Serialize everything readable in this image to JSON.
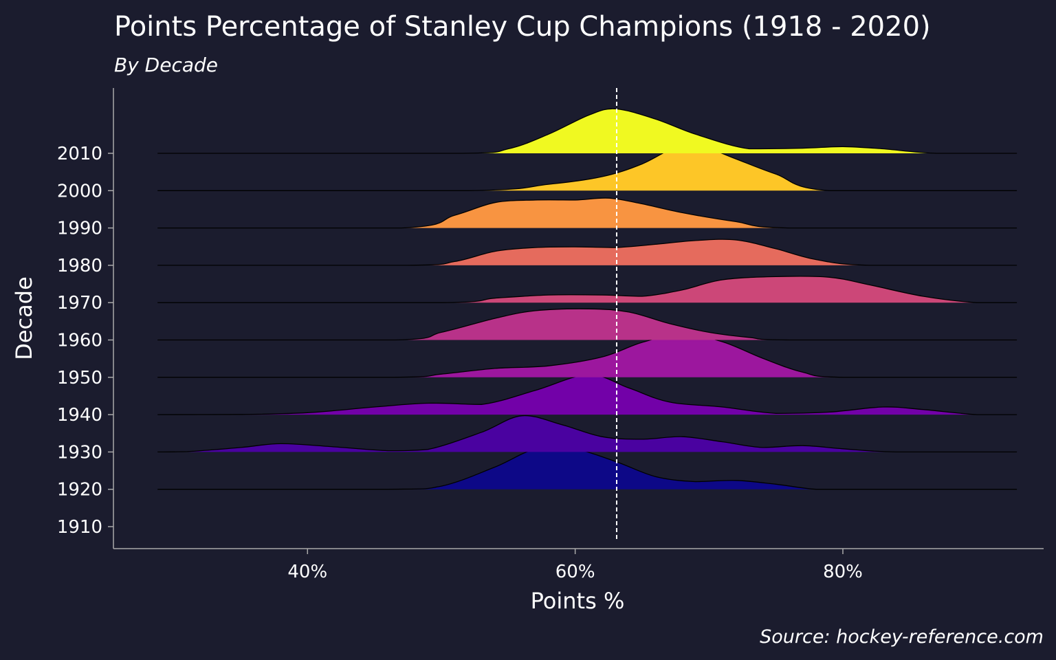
{
  "chart_data": {
    "type": "ridgeline",
    "title": "Points Percentage of Stanley Cup Champions (1918 - 2020)",
    "subtitle": "By Decade",
    "xlabel": "Points %",
    "ylabel": "Decade",
    "caption": "Source: hockey-reference.com",
    "xlim": [
      25.5,
      95
    ],
    "x_ticks": [
      40,
      60,
      80
    ],
    "x_tick_labels": [
      "40%",
      "60%",
      "80%"
    ],
    "y_ticks": [
      "2010",
      "2000",
      "1990",
      "1980",
      "1970",
      "1960",
      "1950",
      "1940",
      "1930",
      "1920",
      "1910"
    ],
    "reference_line": {
      "x": 63.1,
      "style": "dashed",
      "color": "#ffffff"
    },
    "grid": false,
    "legend": "none",
    "ridge_scale": 1.7,
    "series": [
      {
        "decade": "2010",
        "color": "#f0f921",
        "x": [
          28.8,
          51.5,
          55,
          58,
          61,
          63,
          66,
          69,
          73,
          77,
          80,
          83,
          87,
          93
        ],
        "density": [
          0,
          0,
          0.07,
          0.3,
          0.6,
          0.7,
          0.54,
          0.3,
          0.07,
          0.08,
          0.105,
          0.07,
          0,
          0
        ]
      },
      {
        "decade": "2000",
        "color": "#fdc627",
        "x": [
          28.8,
          52,
          58,
          62,
          65,
          68,
          70,
          72,
          75,
          79,
          93
        ],
        "density": [
          0,
          0,
          0.1,
          0.22,
          0.42,
          0.73,
          0.66,
          0.5,
          0.26,
          0,
          0
        ]
      },
      {
        "decade": "1990",
        "color": "#f89441",
        "x": [
          28.8,
          47,
          51,
          54,
          57,
          60,
          62.5,
          65,
          68,
          72,
          76,
          93
        ],
        "density": [
          0,
          0,
          0.2,
          0.4,
          0.44,
          0.44,
          0.47,
          0.38,
          0.24,
          0.1,
          0,
          0
        ]
      },
      {
        "decade": "1980",
        "color": "#e56b5d",
        "x": [
          28.8,
          47.5,
          51,
          54,
          57,
          60,
          63,
          66,
          69,
          72,
          75,
          78,
          82,
          93
        ],
        "density": [
          0,
          0,
          0.06,
          0.22,
          0.28,
          0.29,
          0.28,
          0.33,
          0.39,
          0.4,
          0.26,
          0.09,
          0,
          0
        ]
      },
      {
        "decade": "1970",
        "color": "#cc4778",
        "x": [
          28.8,
          50,
          54,
          58,
          62,
          65,
          68,
          71,
          75,
          79,
          82,
          86,
          90,
          93
        ],
        "density": [
          0,
          0,
          0.07,
          0.12,
          0.12,
          0.1,
          0.2,
          0.36,
          0.41,
          0.4,
          0.28,
          0.1,
          0,
          0
        ]
      },
      {
        "decade": "1960",
        "color": "#b83289",
        "x": [
          28.8,
          46.5,
          50,
          54,
          57,
          61,
          64,
          67,
          70,
          73,
          76,
          93
        ],
        "density": [
          0,
          0,
          0.12,
          0.34,
          0.46,
          0.49,
          0.44,
          0.26,
          0.12,
          0.04,
          0,
          0
        ]
      },
      {
        "decade": "1950",
        "color": "#9c179e",
        "x": [
          28.8,
          46.5,
          50,
          54,
          58,
          62,
          65,
          68,
          71,
          74,
          77,
          80,
          93
        ],
        "density": [
          0,
          0,
          0.05,
          0.14,
          0.18,
          0.32,
          0.55,
          0.68,
          0.56,
          0.3,
          0.08,
          0,
          0
        ]
      },
      {
        "decade": "1940",
        "color": "#7201a8",
        "x": [
          28.8,
          35,
          40,
          45,
          49,
          53,
          57,
          61,
          64,
          67,
          71,
          75,
          79,
          83,
          86,
          90,
          93
        ],
        "density": [
          0,
          0.003,
          0.03,
          0.12,
          0.18,
          0.16,
          0.38,
          0.63,
          0.42,
          0.2,
          0.12,
          0.02,
          0.04,
          0.12,
          0.08,
          0,
          0
        ]
      },
      {
        "decade": "1930",
        "color": "#4a02a0",
        "x": [
          28.8,
          31,
          35,
          38,
          42,
          46,
          49,
          53,
          56,
          59,
          62,
          65,
          68,
          71,
          74,
          77,
          80,
          84,
          93
        ],
        "density": [
          0,
          0.005,
          0.07,
          0.13,
          0.08,
          0.02,
          0.04,
          0.31,
          0.57,
          0.43,
          0.24,
          0.2,
          0.24,
          0.16,
          0.07,
          0.1,
          0.05,
          0,
          0
        ]
      },
      {
        "decade": "1920",
        "color": "#0d0887",
        "x": [
          28.8,
          46,
          50,
          54,
          57,
          60,
          63,
          66,
          69,
          72,
          75,
          78,
          81,
          93
        ],
        "density": [
          0,
          0,
          0.05,
          0.35,
          0.63,
          0.63,
          0.44,
          0.2,
          0.12,
          0.14,
          0.08,
          0,
          0,
          0
        ]
      }
    ]
  }
}
